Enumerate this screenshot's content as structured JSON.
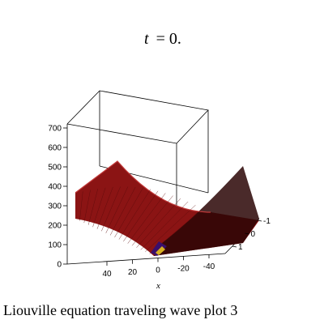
{
  "chart_data": {
    "type": "surface3d",
    "title_var": "t",
    "title_eq": "= 0.",
    "caption": "Liouville equation  traveling wave plot 3",
    "xlabel": "x",
    "x_ticks": [
      "40",
      "20",
      "0",
      "-20",
      "-40"
    ],
    "z_ticks": [
      "0",
      "100",
      "200",
      "300",
      "400",
      "500",
      "600",
      "700"
    ],
    "y_ticks": [
      "-1",
      "0",
      "1"
    ],
    "surface_color": "#8b1414",
    "surface_dark": "#2a0505",
    "accent_colors": [
      "#3a0f6a",
      "#d8b020"
    ]
  }
}
